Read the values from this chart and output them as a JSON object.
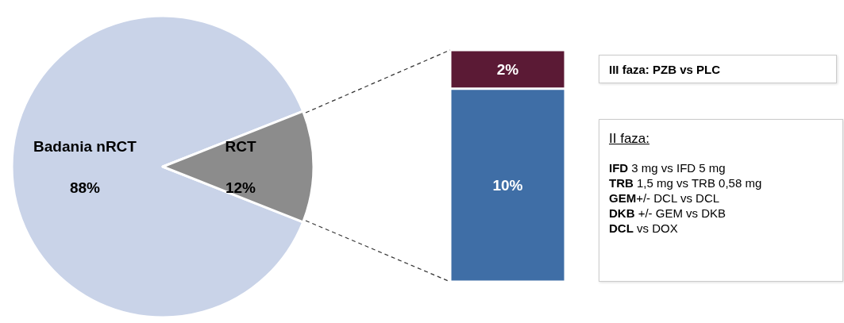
{
  "chart_data": [
    {
      "type": "pie",
      "categories": [
        "Badania nRCT",
        "RCT"
      ],
      "values": [
        88,
        12
      ],
      "value_labels": [
        "88%",
        "12%"
      ],
      "colors": [
        "#c9d3e8",
        "#8c8c8c"
      ],
      "legend": false
    },
    {
      "type": "bar",
      "stacked": true,
      "categories": [
        null
      ],
      "ylim": [
        0,
        12
      ],
      "tick_labels": false,
      "legend": false,
      "series": [
        {
          "color": "#3f6ea6",
          "values": [
            10
          ],
          "value_labels": [
            "10%"
          ]
        },
        {
          "color": "#5b1a35",
          "values": [
            2
          ],
          "value_labels": [
            "2%"
          ]
        }
      ]
    },
    {
      "type": "other",
      "title": "III faza: PZB vs PLC",
      "subtitle": "II faza:",
      "annotations": [
        "IFD 3 mg vs IFD 5 mg",
        "TRB 1,5 mg vs TRB 0,58 mg",
        "GEM+/- DCL vs DCL",
        "DKB +/- GEM vs DKB",
        "DCL vs DOX"
      ]
    }
  ]
}
